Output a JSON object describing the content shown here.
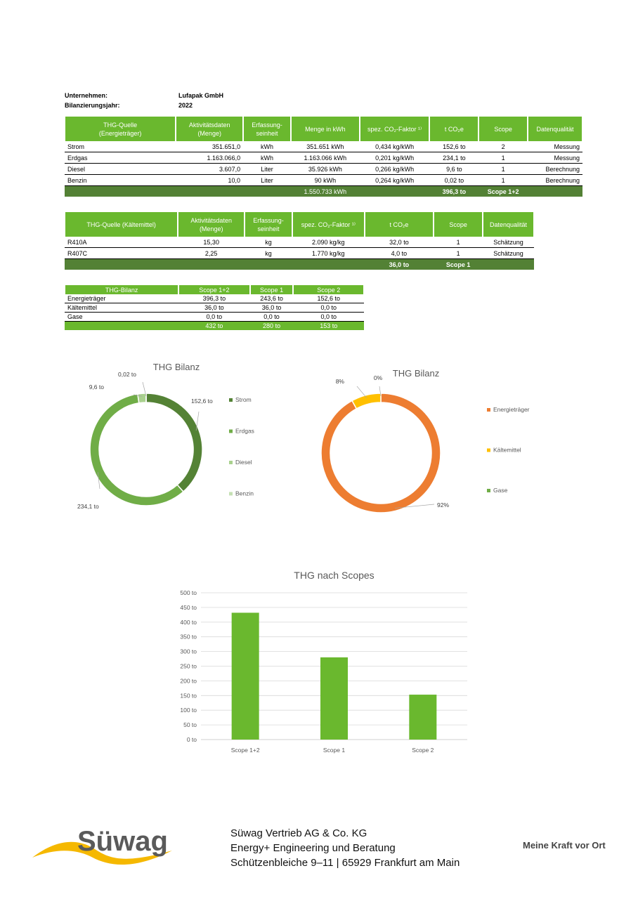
{
  "meta": {
    "company_label": "Unternehmen:",
    "company_value": "Lufapak GmbH",
    "year_label": "Bilanzierungsjahr:",
    "year_value": "2022"
  },
  "energy_table": {
    "headers": [
      "THG-Quelle\n(Energieträger)",
      "Aktivitätsdaten\n(Menge)",
      "Erfassung-\nseinheit",
      "Menge in kWh",
      "spez. CO₂-Faktor ¹⁾",
      "t CO₂e",
      "Scope",
      "Datenqualität"
    ],
    "rows": [
      [
        "Strom",
        "351.651,0",
        "kWh",
        "351.651 kWh",
        "0,434 kg/kWh",
        "152,6 to",
        "2",
        "Messung"
      ],
      [
        "Erdgas",
        "1.163.066,0",
        "kWh",
        "1.163.066 kWh",
        "0,201 kg/kWh",
        "234,1 to",
        "1",
        "Messung"
      ],
      [
        "Diesel",
        "3.607,0",
        "Liter",
        "35.926 kWh",
        "0,266 kg/kWh",
        "9,6 to",
        "1",
        "Berechnung"
      ],
      [
        "Benzin",
        "10,0",
        "Liter",
        "90 kWh",
        "0,264 kg/kWh",
        "0,02 to",
        "1",
        "Berechnung"
      ]
    ],
    "total": {
      "kwh": "1.550.733 kWh",
      "tco2": "396,3 to",
      "scope": "Scope 1+2"
    }
  },
  "refrigerant_table": {
    "headers": [
      "THG-Quelle (Kältemittel)",
      "Aktivitätsdaten\n(Menge)",
      "Erfassung-\nseinheit",
      "spez. CO₂-Faktor ¹⁾",
      "t CO₂e",
      "Scope",
      "Datenqualität"
    ],
    "rows": [
      [
        "R410A",
        "15,30",
        "kg",
        "2.090 kg/kg",
        "32,0 to",
        "1",
        "Schätzung"
      ],
      [
        "R407C",
        "2,25",
        "kg",
        "1.770 kg/kg",
        "4,0 to",
        "1",
        "Schätzung"
      ]
    ],
    "total": {
      "tco2": "36,0 to",
      "scope": "Scope 1"
    }
  },
  "summary_table": {
    "headers": [
      "THG-Bilanz",
      "Scope 1+2",
      "Scope 1",
      "Scope 2"
    ],
    "rows": [
      [
        "Energieträger",
        "396,3 to",
        "243,6 to",
        "152,6 to"
      ],
      [
        "Kältemittel",
        "36,0 to",
        "36,0 to",
        "0,0 to"
      ],
      [
        "Gase",
        "0,0 to",
        "0,0 to",
        "0,0 to"
      ]
    ],
    "total": [
      "",
      "432 to",
      "280 to",
      "153 to"
    ]
  },
  "chart_data": [
    {
      "type": "pie",
      "title": "THG Bilanz",
      "categories": [
        "Strom",
        "Erdgas",
        "Diesel",
        "Benzin"
      ],
      "values": [
        152.6,
        234.1,
        9.6,
        0.02
      ],
      "data_labels": [
        "152,6 to",
        "234,1 to",
        "9,6 to",
        "0,02 to"
      ],
      "colors": [
        "#548235",
        "#70ad47",
        "#a9d18e",
        "#c5e0b4"
      ],
      "legend": "right"
    },
    {
      "type": "pie",
      "title": "THG Bilanz",
      "categories": [
        "Energieträger",
        "Kältemittel",
        "Gase"
      ],
      "values": [
        92,
        8,
        0
      ],
      "data_labels": [
        "92%",
        "8%",
        "0%"
      ],
      "colors": [
        "#ed7d31",
        "#ffc000",
        "#70ad47"
      ],
      "legend": "right"
    },
    {
      "type": "bar",
      "title": "THG nach Scopes",
      "categories": [
        "Scope 1+2",
        "Scope 1",
        "Scope 2"
      ],
      "values": [
        432,
        280,
        153
      ],
      "ylim": [
        0,
        500
      ],
      "yticks": [
        "0 to",
        "50 to",
        "100 to",
        "150 to",
        "200 to",
        "250 to",
        "300 to",
        "350 to",
        "400 to",
        "450 to",
        "500 to"
      ],
      "color": "#6ab82e",
      "grid": true
    }
  ],
  "footer": {
    "logo_text": "Süwag",
    "address_lines": [
      "Süwag Vertrieb AG & Co. KG",
      "Energy+ Engineering und Beratung",
      "Schützenbleiche 9–11 | 65929 Frankfurt am Main"
    ],
    "slogan": "Meine Kraft vor Ort"
  }
}
